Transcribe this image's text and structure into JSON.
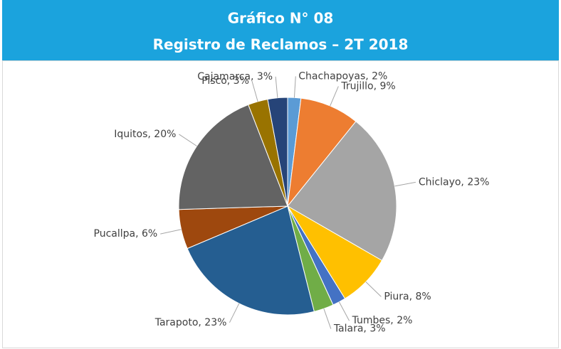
{
  "chart_data": {
    "type": "pie",
    "title": "Gráfico N° 08",
    "subtitle": "Registro de Reclamos – 2T 2018",
    "values": [
      2,
      9,
      23,
      8,
      2,
      3,
      23,
      6,
      20,
      3,
      3
    ],
    "value_labels": [
      "Chachapoyas, 2%",
      "Trujillo, 9%",
      "Chiclayo, 23%",
      "Piura, 8%",
      "Tumbes, 2%",
      "Talara, 3%",
      "Tarapoto, 23%",
      "Pucallpa, 6%",
      "Iquitos, 20%",
      "Pisco, 3%",
      "Cajamarca, 3%"
    ],
    "colors": [
      "#5b9bd5",
      "#ed7d31",
      "#a5a5a5",
      "#ffc000",
      "#4472c4",
      "#70ad47",
      "#255e91",
      "#9e480e",
      "#636363",
      "#997300",
      "#264478"
    ]
  }
}
